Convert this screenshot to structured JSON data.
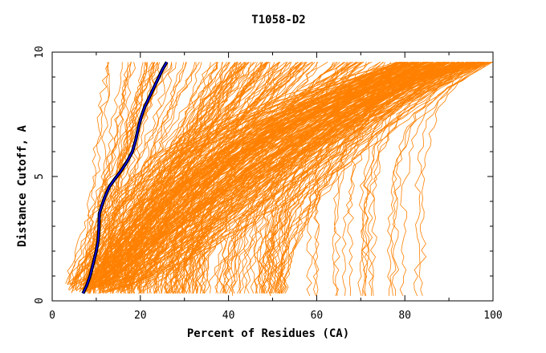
{
  "chart_data": {
    "type": "line",
    "title": "T1058-D2",
    "xlabel": "Percent of Residues (CA)",
    "ylabel": "Distance Cutoff, A",
    "xlim": [
      0,
      100
    ],
    "ylim": [
      0,
      10
    ],
    "x_ticks": [
      0,
      20,
      40,
      60,
      80,
      100
    ],
    "x_tick_labels": [
      "0",
      "20",
      "40",
      "60",
      "80",
      "100"
    ],
    "y_ticks": [
      0,
      5,
      10
    ],
    "y_tick_labels": [
      "0",
      "5",
      "10"
    ],
    "grid": false,
    "legend": "none",
    "colors": {
      "background_curves": "#ff8000",
      "highlight_outline": "#000000",
      "highlight_line": "#0000ff"
    },
    "highlight_series": {
      "x": [
        7.0,
        7.8,
        8.6,
        9.3,
        10.0,
        10.4,
        10.6,
        10.7,
        11.2,
        12.0,
        13.0,
        14.2,
        15.5,
        17.0,
        18.2,
        19.0,
        19.6,
        20.2,
        21.0,
        21.8,
        22.6,
        23.4,
        24.2,
        25.0,
        26.0
      ],
      "y": [
        0.3,
        0.6,
        1.0,
        1.5,
        2.0,
        2.4,
        2.9,
        3.5,
        3.8,
        4.2,
        4.6,
        4.9,
        5.2,
        5.6,
        6.0,
        6.5,
        7.0,
        7.4,
        7.8,
        8.1,
        8.4,
        8.7,
        9.0,
        9.3,
        9.6
      ]
    },
    "background_series_count": 360
  }
}
